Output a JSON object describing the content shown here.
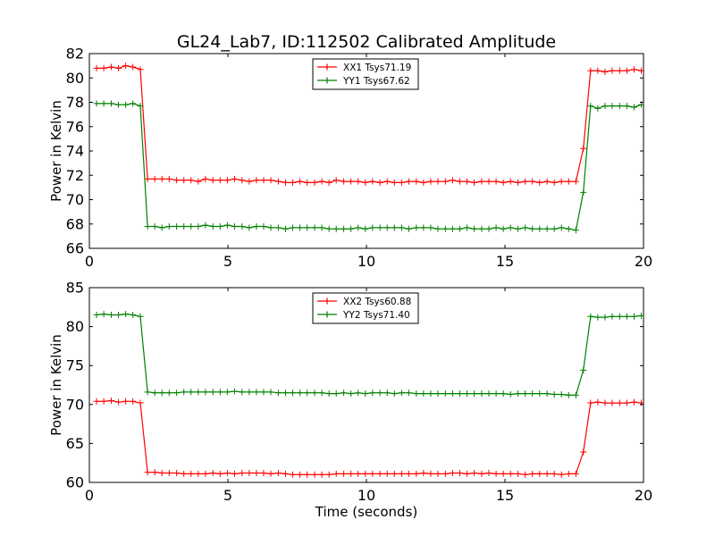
{
  "figure_title": "GL24_Lab7, ID:112502 Calibrated Amplitude",
  "chart_data": [
    {
      "type": "line",
      "title": "GL24_Lab7, ID:112502 Calibrated Amplitude",
      "xlabel": "",
      "ylabel": "Power in Kelvin",
      "xlim": [
        0,
        20
      ],
      "ylim": [
        66,
        82
      ],
      "xticks": [
        0,
        5,
        10,
        15,
        20
      ],
      "yticks": [
        66,
        68,
        70,
        72,
        74,
        76,
        78,
        80,
        82
      ],
      "legend_position": "upper center",
      "x": [
        0.26,
        0.52,
        0.79,
        1.05,
        1.31,
        1.57,
        1.84,
        2.1,
        2.36,
        2.62,
        2.88,
        3.15,
        3.41,
        3.67,
        3.93,
        4.19,
        4.46,
        4.72,
        4.98,
        5.24,
        5.51,
        5.77,
        6.03,
        6.29,
        6.55,
        6.82,
        7.08,
        7.34,
        7.6,
        7.86,
        8.13,
        8.39,
        8.65,
        8.91,
        9.18,
        9.44,
        9.7,
        9.96,
        10.22,
        10.49,
        10.75,
        11.01,
        11.27,
        11.53,
        11.8,
        12.06,
        12.32,
        12.58,
        12.85,
        13.11,
        13.37,
        13.63,
        13.89,
        14.16,
        14.42,
        14.68,
        14.94,
        15.2,
        15.47,
        15.73,
        15.99,
        16.25,
        16.52,
        16.78,
        17.04,
        17.3,
        17.56,
        17.83,
        18.09,
        18.35,
        18.61,
        18.87,
        19.14,
        19.4,
        19.66,
        19.92
      ],
      "series": [
        {
          "name": "XX1 Tsys71.19",
          "color": "#ff0000",
          "values": [
            80.8,
            80.8,
            80.9,
            80.8,
            81.0,
            80.9,
            80.7,
            71.7,
            71.7,
            71.7,
            71.7,
            71.6,
            71.6,
            71.6,
            71.5,
            71.7,
            71.6,
            71.6,
            71.6,
            71.7,
            71.6,
            71.5,
            71.6,
            71.6,
            71.6,
            71.5,
            71.4,
            71.4,
            71.5,
            71.4,
            71.4,
            71.5,
            71.4,
            71.6,
            71.5,
            71.5,
            71.5,
            71.4,
            71.5,
            71.4,
            71.5,
            71.4,
            71.4,
            71.5,
            71.5,
            71.4,
            71.5,
            71.5,
            71.5,
            71.6,
            71.5,
            71.5,
            71.4,
            71.5,
            71.5,
            71.5,
            71.4,
            71.5,
            71.4,
            71.5,
            71.5,
            71.4,
            71.5,
            71.4,
            71.5,
            71.5,
            71.5,
            74.2,
            80.6,
            80.6,
            80.5,
            80.6,
            80.6,
            80.6,
            80.7,
            80.6
          ]
        },
        {
          "name": "YY1 Tsys67.62",
          "color": "#008000",
          "values": [
            77.9,
            77.9,
            77.9,
            77.8,
            77.8,
            77.9,
            77.7,
            67.8,
            67.8,
            67.7,
            67.8,
            67.8,
            67.8,
            67.8,
            67.8,
            67.9,
            67.8,
            67.8,
            67.9,
            67.8,
            67.8,
            67.7,
            67.8,
            67.8,
            67.7,
            67.7,
            67.6,
            67.7,
            67.7,
            67.7,
            67.7,
            67.7,
            67.6,
            67.6,
            67.6,
            67.6,
            67.7,
            67.6,
            67.7,
            67.7,
            67.7,
            67.7,
            67.7,
            67.6,
            67.7,
            67.7,
            67.7,
            67.6,
            67.6,
            67.6,
            67.6,
            67.7,
            67.6,
            67.6,
            67.6,
            67.7,
            67.6,
            67.7,
            67.6,
            67.7,
            67.6,
            67.6,
            67.6,
            67.6,
            67.7,
            67.6,
            67.5,
            70.6,
            77.7,
            77.5,
            77.7,
            77.7,
            77.7,
            77.7,
            77.6,
            77.8
          ]
        }
      ]
    },
    {
      "type": "line",
      "title": "",
      "xlabel": "Time (seconds)",
      "ylabel": "Power in Kelvin",
      "xlim": [
        0,
        20
      ],
      "ylim": [
        60,
        85
      ],
      "xticks": [
        0,
        5,
        10,
        15,
        20
      ],
      "yticks": [
        60,
        65,
        70,
        75,
        80,
        85
      ],
      "legend_position": "upper center",
      "x": [
        0.26,
        0.52,
        0.79,
        1.05,
        1.31,
        1.57,
        1.84,
        2.1,
        2.36,
        2.62,
        2.88,
        3.15,
        3.41,
        3.67,
        3.93,
        4.19,
        4.46,
        4.72,
        4.98,
        5.24,
        5.51,
        5.77,
        6.03,
        6.29,
        6.55,
        6.82,
        7.08,
        7.34,
        7.6,
        7.86,
        8.13,
        8.39,
        8.65,
        8.91,
        9.18,
        9.44,
        9.7,
        9.96,
        10.22,
        10.49,
        10.75,
        11.01,
        11.27,
        11.53,
        11.8,
        12.06,
        12.32,
        12.58,
        12.85,
        13.11,
        13.37,
        13.63,
        13.89,
        14.16,
        14.42,
        14.68,
        14.94,
        15.2,
        15.47,
        15.73,
        15.99,
        16.25,
        16.52,
        16.78,
        17.04,
        17.3,
        17.56,
        17.83,
        18.09,
        18.35,
        18.61,
        18.87,
        19.14,
        19.4,
        19.66,
        19.92
      ],
      "series": [
        {
          "name": "XX2 Tsys60.88",
          "color": "#ff0000",
          "values": [
            70.4,
            70.4,
            70.5,
            70.3,
            70.4,
            70.4,
            70.2,
            61.3,
            61.3,
            61.2,
            61.2,
            61.2,
            61.1,
            61.1,
            61.1,
            61.1,
            61.2,
            61.1,
            61.2,
            61.1,
            61.2,
            61.2,
            61.2,
            61.2,
            61.1,
            61.2,
            61.1,
            61.0,
            61.0,
            61.0,
            61.0,
            61.0,
            61.0,
            61.1,
            61.1,
            61.1,
            61.1,
            61.1,
            61.1,
            61.1,
            61.1,
            61.1,
            61.1,
            61.1,
            61.1,
            61.2,
            61.1,
            61.1,
            61.1,
            61.2,
            61.2,
            61.1,
            61.2,
            61.1,
            61.2,
            61.1,
            61.1,
            61.1,
            61.1,
            61.0,
            61.1,
            61.1,
            61.1,
            61.1,
            61.0,
            61.1,
            61.1,
            63.9,
            70.2,
            70.3,
            70.2,
            70.2,
            70.2,
            70.2,
            70.3,
            70.2
          ]
        },
        {
          "name": "YY2 Tsys71.40",
          "color": "#008000",
          "values": [
            81.5,
            81.6,
            81.5,
            81.5,
            81.6,
            81.5,
            81.3,
            71.6,
            71.5,
            71.5,
            71.5,
            71.5,
            71.6,
            71.6,
            71.6,
            71.6,
            71.6,
            71.6,
            71.6,
            71.7,
            71.6,
            71.6,
            71.6,
            71.6,
            71.6,
            71.5,
            71.5,
            71.5,
            71.5,
            71.5,
            71.5,
            71.5,
            71.4,
            71.4,
            71.5,
            71.4,
            71.5,
            71.4,
            71.5,
            71.5,
            71.5,
            71.4,
            71.5,
            71.5,
            71.4,
            71.4,
            71.4,
            71.4,
            71.4,
            71.4,
            71.4,
            71.4,
            71.4,
            71.4,
            71.4,
            71.4,
            71.4,
            71.3,
            71.4,
            71.4,
            71.4,
            71.4,
            71.4,
            71.3,
            71.3,
            71.2,
            71.2,
            74.4,
            81.3,
            81.2,
            81.2,
            81.3,
            81.3,
            81.3,
            81.3,
            81.4
          ]
        }
      ]
    }
  ]
}
